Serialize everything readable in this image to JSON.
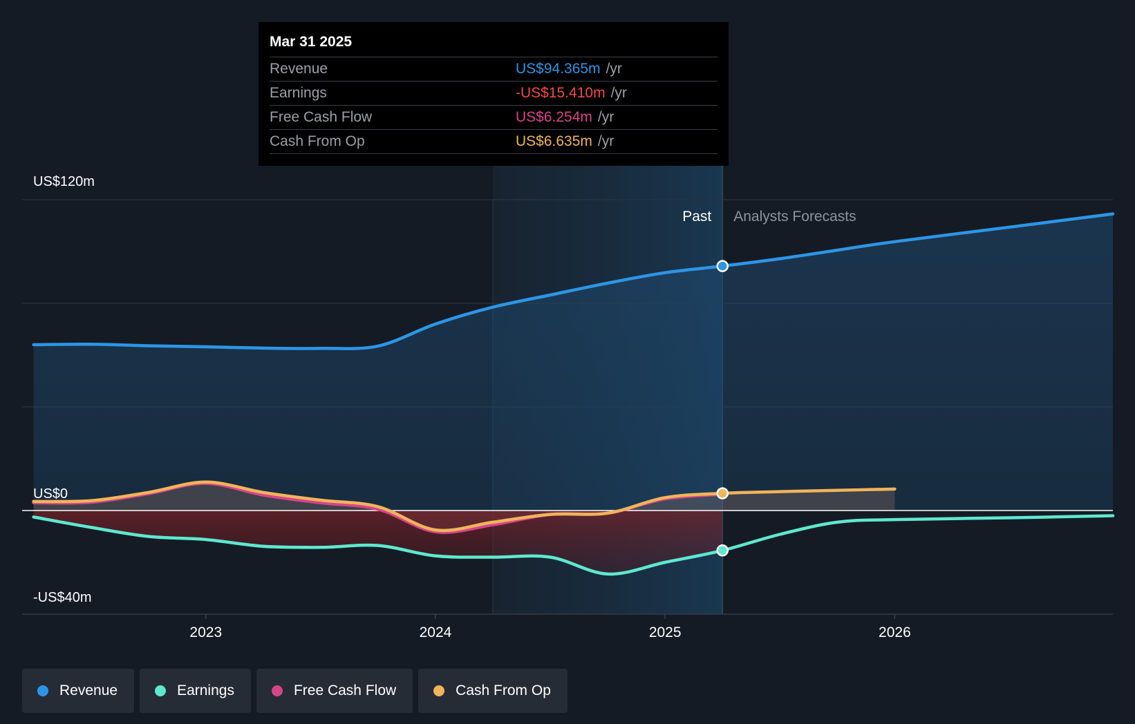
{
  "tooltip": {
    "date": "Mar 31 2025",
    "rows": [
      {
        "label": "Revenue",
        "value": "US$94.365m",
        "unit": "/yr",
        "color": "#2d95e6"
      },
      {
        "label": "Earnings",
        "value": "-US$15.410m",
        "unit": "/yr",
        "color": "#f0484e"
      },
      {
        "label": "Free Cash Flow",
        "value": "US$6.254m",
        "unit": "/yr",
        "color": "#d6458a"
      },
      {
        "label": "Cash From Op",
        "value": "US$6.635m",
        "unit": "/yr",
        "color": "#f0b45a"
      }
    ]
  },
  "legend": [
    {
      "label": "Revenue",
      "color": "#2d95e6"
    },
    {
      "label": "Earnings",
      "color": "#5ee8d0"
    },
    {
      "label": "Free Cash Flow",
      "color": "#d6458a"
    },
    {
      "label": "Cash From Op",
      "color": "#f0b45a"
    }
  ],
  "chart_data": {
    "type": "line",
    "y_tick_labels": [
      "US$120m",
      "US$0",
      "-US$40m"
    ],
    "ylim": [
      -40,
      120
    ],
    "xlim": [
      2022.2,
      2026.95
    ],
    "x_tick_labels": [
      "2023",
      "2024",
      "2025",
      "2026"
    ],
    "x_ticks": [
      2023,
      2024,
      2025,
      2026
    ],
    "past_label": "Past",
    "forecast_label": "Analysts Forecasts",
    "divider_x": 2025.25,
    "highlight_start": 2024.25,
    "series": [
      {
        "name": "Revenue",
        "color": "#2d95e6",
        "fill": true,
        "x": [
          2022.25,
          2022.5,
          2022.75,
          2023.0,
          2023.25,
          2023.5,
          2023.75,
          2024.0,
          2024.25,
          2024.5,
          2024.75,
          2025.0,
          2025.25,
          2025.5,
          2025.75,
          2026.0,
          2026.5,
          2026.95
        ],
        "y": [
          64,
          64.2,
          63.6,
          63.2,
          62.7,
          62.6,
          63.5,
          72,
          78.5,
          83.2,
          87.8,
          91.8,
          94.365,
          97.2,
          100.5,
          103.8,
          109.4,
          114.5
        ]
      },
      {
        "name": "Earnings",
        "color": "#5ee8d0",
        "fill": false,
        "x": [
          2022.25,
          2022.5,
          2022.75,
          2023.0,
          2023.25,
          2023.5,
          2023.75,
          2024.0,
          2024.25,
          2024.5,
          2024.75,
          2025.0,
          2025.25,
          2025.5,
          2025.75,
          2026.0,
          2026.5,
          2026.95
        ],
        "y": [
          -2.5,
          -6.5,
          -10,
          -11.2,
          -13.8,
          -14.2,
          -13.5,
          -17.5,
          -18,
          -18,
          -24.5,
          -20,
          -15.41,
          -9.2,
          -4.5,
          -3.5,
          -2.8,
          -2
        ]
      },
      {
        "name": "Free Cash Flow",
        "color": "#d6458a",
        "fill": false,
        "x": [
          2022.25,
          2022.5,
          2022.75,
          2023.0,
          2023.25,
          2023.5,
          2023.75,
          2024.0,
          2024.25,
          2024.5,
          2024.75,
          2025.0,
          2025.25
        ],
        "y": [
          3,
          3.2,
          6.5,
          10.5,
          6,
          3,
          0.5,
          -8.2,
          -5.5,
          -1.5,
          -1,
          4.5,
          6.254
        ]
      },
      {
        "name": "Cash From Op",
        "color": "#f0b45a",
        "fill": false,
        "x": [
          2022.25,
          2022.5,
          2022.75,
          2023.0,
          2023.25,
          2023.5,
          2023.75,
          2024.0,
          2024.25,
          2024.5,
          2024.75,
          2025.0,
          2025.25,
          2025.5,
          2025.75,
          2026.0
        ],
        "y": [
          3.5,
          3.8,
          7,
          11,
          7,
          4,
          1.5,
          -7.5,
          -4.5,
          -1.5,
          -1,
          5,
          6.635,
          7.3,
          7.8,
          8.3
        ]
      }
    ]
  }
}
